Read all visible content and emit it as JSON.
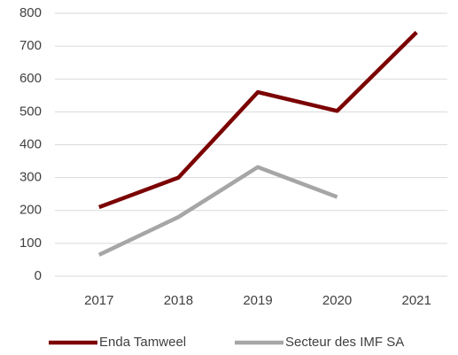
{
  "chart_data": {
    "type": "line",
    "categories": [
      "2017",
      "2018",
      "2019",
      "2020",
      "2021"
    ],
    "series": [
      {
        "name": "Enda Tamweel",
        "color": "#7b0000",
        "values": [
          210,
          300,
          560,
          503,
          742
        ]
      },
      {
        "name": "Secteur des IMF SA",
        "color": "#a6a6a6",
        "values": [
          65,
          180,
          332,
          241,
          null
        ]
      }
    ],
    "ylim": [
      0,
      800
    ],
    "yticks": [
      0,
      100,
      200,
      300,
      400,
      500,
      600,
      700,
      800
    ],
    "grid": true,
    "legend": "bottom"
  }
}
